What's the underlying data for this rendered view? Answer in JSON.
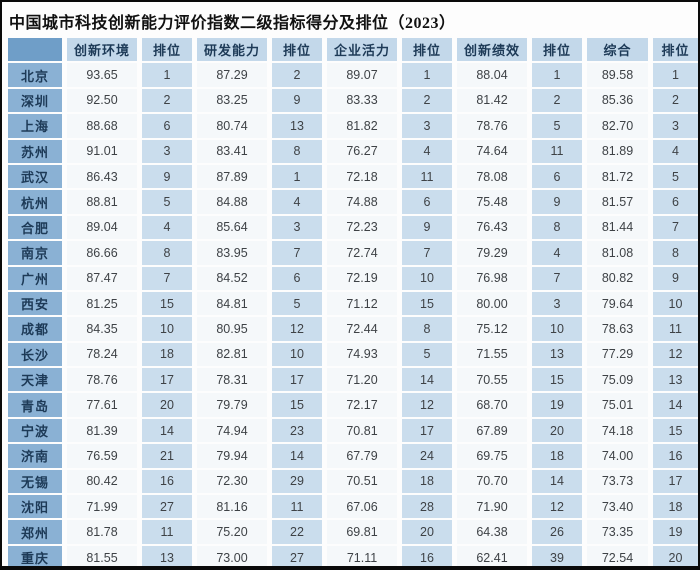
{
  "title": "中国城市科技创新能力评价指数二级指标得分及排位（2023）",
  "colors": {
    "corner": "#6f9ec8",
    "city_column": "#8ab1d4",
    "header_row": "#c3d8ea",
    "rank_column": "#cadded",
    "score_column": "#f5f8fa",
    "frame_border": "#0a0a0a"
  },
  "chart_data": {
    "type": "table",
    "title": "中国城市科技创新能力评价指数二级指标得分及排位（2023）",
    "columns": [
      "",
      "创新环境",
      "排位",
      "研发能力",
      "排位",
      "企业活力",
      "排位",
      "创新绩效",
      "排位",
      "综合",
      "排位"
    ],
    "rows": [
      [
        "北京",
        "93.65",
        "1",
        "87.29",
        "2",
        "89.07",
        "1",
        "88.04",
        "1",
        "89.58",
        "1"
      ],
      [
        "深圳",
        "92.50",
        "2",
        "83.25",
        "9",
        "83.33",
        "2",
        "81.42",
        "2",
        "85.36",
        "2"
      ],
      [
        "上海",
        "88.68",
        "6",
        "80.74",
        "13",
        "81.82",
        "3",
        "78.76",
        "5",
        "82.70",
        "3"
      ],
      [
        "苏州",
        "91.01",
        "3",
        "83.41",
        "8",
        "76.27",
        "4",
        "74.64",
        "11",
        "81.89",
        "4"
      ],
      [
        "武汉",
        "86.43",
        "9",
        "87.89",
        "1",
        "72.18",
        "11",
        "78.08",
        "6",
        "81.72",
        "5"
      ],
      [
        "杭州",
        "88.81",
        "5",
        "84.88",
        "4",
        "74.88",
        "6",
        "75.48",
        "9",
        "81.57",
        "6"
      ],
      [
        "合肥",
        "89.04",
        "4",
        "85.64",
        "3",
        "72.23",
        "9",
        "76.43",
        "8",
        "81.44",
        "7"
      ],
      [
        "南京",
        "86.66",
        "8",
        "83.95",
        "7",
        "72.74",
        "7",
        "79.29",
        "4",
        "81.08",
        "8"
      ],
      [
        "广州",
        "87.47",
        "7",
        "84.52",
        "6",
        "72.19",
        "10",
        "76.98",
        "7",
        "80.82",
        "9"
      ],
      [
        "西安",
        "81.25",
        "15",
        "84.81",
        "5",
        "71.12",
        "15",
        "80.00",
        "3",
        "79.64",
        "10"
      ],
      [
        "成都",
        "84.35",
        "10",
        "80.95",
        "12",
        "72.44",
        "8",
        "75.12",
        "10",
        "78.63",
        "11"
      ],
      [
        "长沙",
        "78.24",
        "18",
        "82.81",
        "10",
        "74.93",
        "5",
        "71.55",
        "13",
        "77.29",
        "12"
      ],
      [
        "天津",
        "78.76",
        "17",
        "78.31",
        "17",
        "71.20",
        "14",
        "70.55",
        "15",
        "75.09",
        "13"
      ],
      [
        "青岛",
        "77.61",
        "20",
        "79.79",
        "15",
        "72.17",
        "12",
        "68.70",
        "19",
        "75.01",
        "14"
      ],
      [
        "宁波",
        "81.39",
        "14",
        "74.94",
        "23",
        "70.81",
        "17",
        "67.89",
        "20",
        "74.18",
        "15"
      ],
      [
        "济南",
        "76.59",
        "21",
        "79.94",
        "14",
        "67.79",
        "24",
        "69.75",
        "18",
        "74.00",
        "16"
      ],
      [
        "无锡",
        "80.42",
        "16",
        "72.30",
        "29",
        "70.51",
        "18",
        "70.70",
        "14",
        "73.73",
        "17"
      ],
      [
        "沈阳",
        "71.99",
        "27",
        "81.16",
        "11",
        "67.06",
        "28",
        "71.90",
        "12",
        "73.40",
        "18"
      ],
      [
        "郑州",
        "81.78",
        "11",
        "75.20",
        "22",
        "69.81",
        "20",
        "64.38",
        "26",
        "73.35",
        "19"
      ],
      [
        "重庆",
        "81.55",
        "13",
        "73.00",
        "27",
        "71.11",
        "16",
        "62.41",
        "39",
        "72.54",
        "20"
      ]
    ]
  }
}
